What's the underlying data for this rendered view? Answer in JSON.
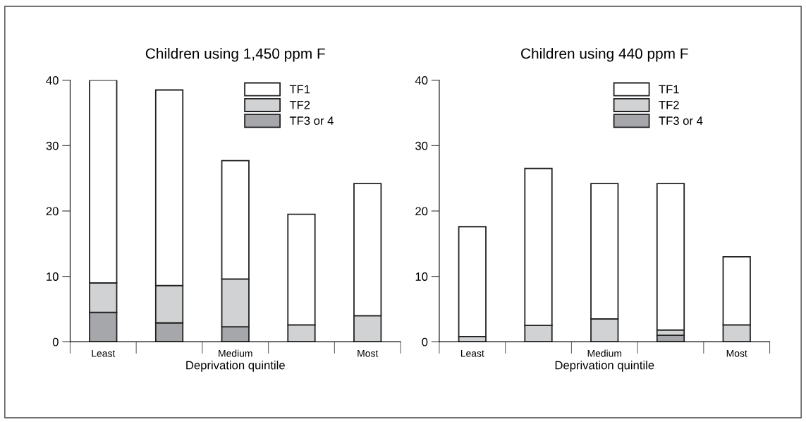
{
  "chart_data": [
    {
      "type": "bar",
      "title": "Children using 1,450 ppm F",
      "xlabel": "Deprivation quintile",
      "categories": [
        "Least",
        null,
        "Medium",
        null,
        "Most"
      ],
      "stacked": true,
      "ylim": [
        0,
        40
      ],
      "yticks": [
        0,
        10,
        20,
        30,
        40
      ],
      "legend": "top right",
      "series": [
        {
          "name": "TF3 or 4",
          "color": "#a6a7aa",
          "values": [
            4.5,
            2.9,
            2.3,
            0,
            0
          ]
        },
        {
          "name": "TF2",
          "color": "#d1d2d4",
          "values": [
            4.5,
            5.7,
            7.3,
            2.6,
            4.0
          ]
        },
        {
          "name": "TF1",
          "color": "#ffffff",
          "values": [
            31,
            29.9,
            18.1,
            16.9,
            20.2
          ]
        }
      ]
    },
    {
      "type": "bar",
      "title": "Children using 440 ppm F",
      "xlabel": "Deprivation quintile",
      "categories": [
        "Least",
        null,
        "Medium",
        null,
        "Most"
      ],
      "stacked": true,
      "ylim": [
        0,
        40
      ],
      "yticks": [
        0,
        10,
        20,
        30,
        40
      ],
      "legend": "top right",
      "series": [
        {
          "name": "TF3 or 4",
          "color": "#a6a7aa",
          "values": [
            0,
            0,
            0,
            1.0,
            0
          ]
        },
        {
          "name": "TF2",
          "color": "#d1d2d4",
          "values": [
            0.8,
            2.5,
            3.5,
            0.8,
            2.6
          ]
        },
        {
          "name": "TF1",
          "color": "#ffffff",
          "values": [
            16.8,
            24.0,
            20.7,
            22.4,
            10.4
          ]
        }
      ]
    }
  ]
}
